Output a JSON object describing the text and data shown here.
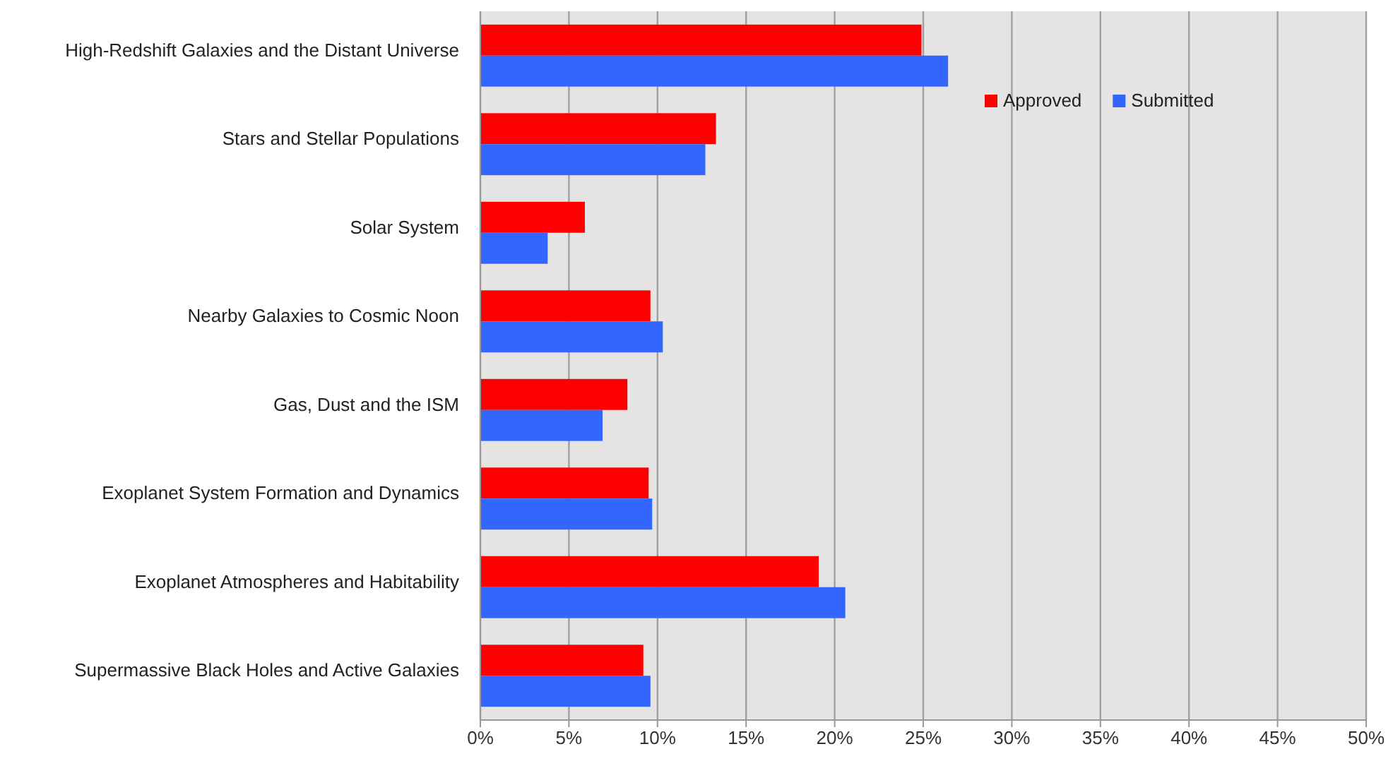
{
  "chart_data": {
    "type": "bar",
    "orientation": "horizontal",
    "categories": [
      "High-Redshift Galaxies and the Distant Universe",
      "Stars and Stellar Populations",
      "Solar System",
      "Nearby Galaxies to Cosmic Noon",
      "Gas, Dust and the ISM",
      "Exoplanet System Formation and Dynamics",
      "Exoplanet Atmospheres and Habitability",
      "Supermassive Black Holes and Active Galaxies"
    ],
    "series": [
      {
        "name": "Approved",
        "color": "#ff0000",
        "values": [
          24.9,
          13.3,
          5.9,
          9.6,
          8.3,
          9.5,
          19.1,
          9.2
        ]
      },
      {
        "name": "Submitted",
        "color": "#3366ff",
        "values": [
          26.4,
          12.7,
          3.8,
          10.3,
          6.9,
          9.7,
          20.6,
          9.6
        ]
      }
    ],
    "xlim": [
      0,
      50
    ],
    "xticks": [
      {
        "value": 0,
        "label": "0%"
      },
      {
        "value": 5,
        "label": "5%"
      },
      {
        "value": 10,
        "label": "10%"
      },
      {
        "value": 15,
        "label": "15%"
      },
      {
        "value": 20,
        "label": "20%"
      },
      {
        "value": 25,
        "label": "25%"
      },
      {
        "value": 30,
        "label": "30%"
      },
      {
        "value": 35,
        "label": "35%"
      },
      {
        "value": 40,
        "label": "40%"
      },
      {
        "value": 45,
        "label": "45%"
      },
      {
        "value": 50,
        "label": "50%"
      }
    ],
    "grid": "x",
    "legend": "top right"
  }
}
